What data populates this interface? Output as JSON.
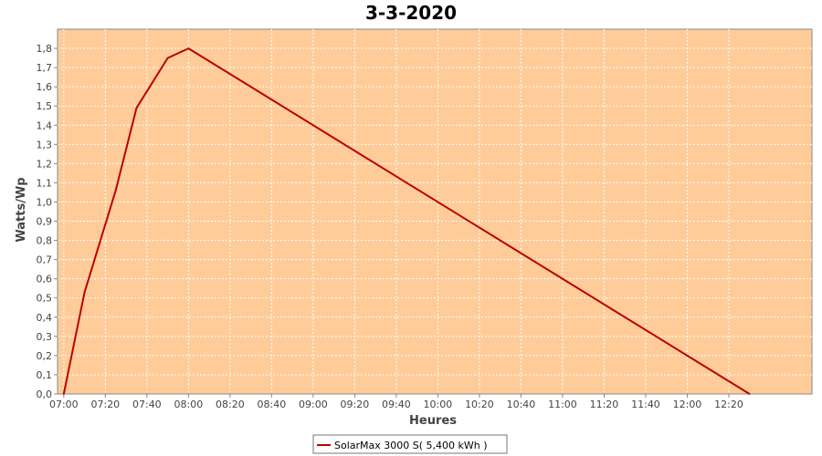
{
  "chart_data": {
    "type": "line",
    "title": "3-3-2020",
    "xlabel": "Heures",
    "ylabel": "Watts/Wp",
    "x_ticks": [
      "07:00",
      "07:20",
      "07:40",
      "08:00",
      "08:20",
      "08:40",
      "09:00",
      "09:20",
      "09:40",
      "10:00",
      "10:20",
      "10:40",
      "11:00",
      "11:20",
      "11:40",
      "12:00",
      "12:20"
    ],
    "y_ticks": [
      "0,0",
      "0,1",
      "0,2",
      "0,3",
      "0,4",
      "0,5",
      "0,6",
      "0,7",
      "0,8",
      "0,9",
      "1,0",
      "1,1",
      "1,2",
      "1,3",
      "1,4",
      "1,5",
      "1,6",
      "1,7",
      "1,8"
    ],
    "xlim": [
      "06:57",
      "13:00"
    ],
    "ylim": [
      0,
      1.9
    ],
    "grid": true,
    "legend_position": "bottom",
    "plot_background": "#FFCC99",
    "series": [
      {
        "name": "SolarMax 3000 S( 5,400 kWh )",
        "color": "#BB0000",
        "points": [
          {
            "x": "07:00",
            "y": 0.0
          },
          {
            "x": "07:10",
            "y": 0.53
          },
          {
            "x": "07:25",
            "y": 1.06
          },
          {
            "x": "07:35",
            "y": 1.49
          },
          {
            "x": "07:50",
            "y": 1.75
          },
          {
            "x": "08:00",
            "y": 1.8
          },
          {
            "x": "12:30",
            "y": 0.0
          }
        ]
      }
    ]
  }
}
